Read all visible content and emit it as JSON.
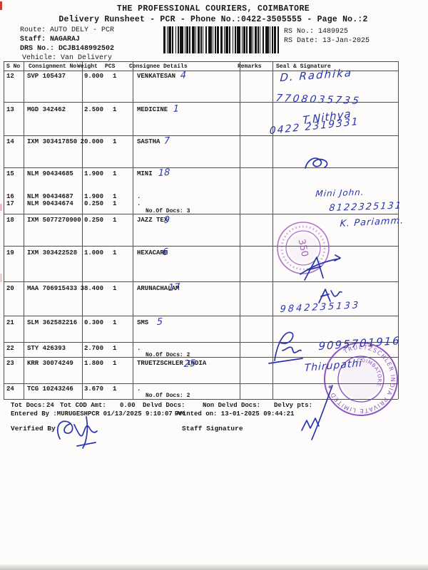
{
  "header": {
    "title": "THE PROFESSIONAL COURIERS, COIMBATORE",
    "subtitle": "Delivery Runsheet - PCR - Phone No.:0422-3505555 - Page No.:2",
    "route_label": "Route:",
    "route": "AUTO DELY - PCR",
    "staff_label": "Staff:",
    "staff": "NAGARAJ",
    "drs_label": "DRS No.:",
    "drs_no": "DCJB148992502",
    "vehicle_label": "Vehicle:",
    "vehicle": "Van Delivery",
    "rs_no_label": "RS No.:",
    "rs_no": "1489925",
    "rs_date_label": "RS Date:",
    "rs_date": "13-Jan-2025",
    "barcode_icon": "barcode"
  },
  "table": {
    "headers": [
      "S No",
      "Consignment No",
      "Weight",
      "PCS",
      "Consignee Details",
      "Remarks",
      "Seal & Signature"
    ],
    "rows": [
      {
        "sno": "12",
        "consignment": "SVP 105437",
        "weight": "9.000",
        "pcs": "1",
        "consignee": "VENKATESAN",
        "hw": "4"
      },
      {
        "sno": "13",
        "consignment": "MGD 342462",
        "weight": "2.500",
        "pcs": "1",
        "consignee": "MEDICINE",
        "hw": "1"
      },
      {
        "sno": "14",
        "consignment": "IXM 303417850",
        "weight": "20.000",
        "pcs": "1",
        "consignee": "SASTHA",
        "hw": "7"
      },
      {
        "sno": "15",
        "consignment": "NLM 90434685",
        "weight": "1.900",
        "pcs": "1",
        "consignee": "MINI",
        "hw": "18"
      },
      {
        "sno": "16",
        "consignment": "NLM 90434687",
        "weight": "1.900",
        "pcs": "1",
        "consignee": "."
      },
      {
        "sno": "17",
        "consignment": "NLM 90434674",
        "weight": "0.250",
        "pcs": "1",
        "consignee": ".",
        "docs_note": "No.Of Docs: 3"
      },
      {
        "sno": "18",
        "consignment": "IXM 5077270900",
        "weight": "0.250",
        "pcs": "1",
        "consignee": "JAZZ TEX",
        "hw": "9"
      },
      {
        "sno": "19",
        "consignment": "IXM 303422528",
        "weight": "1.000",
        "pcs": "1",
        "consignee": "HEXACARE",
        "hw": "6"
      },
      {
        "sno": "20",
        "consignment": "MAA 706915433",
        "weight": "38.400",
        "pcs": "1",
        "consignee": "ARUNACHALAM",
        "hw": "17"
      },
      {
        "sno": "21",
        "consignment": "SLM 362582216",
        "weight": "0.300",
        "pcs": "1",
        "consignee": "SMS",
        "hw": "5"
      },
      {
        "sno": "22",
        "consignment": "STY 426393",
        "weight": "2.700",
        "pcs": "1",
        "consignee": ".",
        "docs_note": "No.Of Docs: 2"
      },
      {
        "sno": "23",
        "consignment": "KRR 30074249",
        "weight": "1.800",
        "pcs": "1",
        "consignee": "TRUETZSCHLER INDIA",
        "hw": "25"
      },
      {
        "sno": "24",
        "consignment": "TCG 10243246",
        "weight": "3.670",
        "pcs": "1",
        "consignee": ".",
        "docs_note": "No.Of Docs: 2"
      }
    ]
  },
  "handwriting": {
    "seal_notes": [
      {
        "text": "D. Radhika"
      },
      {
        "text": "7708035735"
      },
      {
        "text": "T.Nithya"
      },
      {
        "text": "0422 2319331"
      },
      {
        "text": "Mini John."
      },
      {
        "text": "8122325131"
      },
      {
        "text": "K. Pariamm."
      },
      {
        "text": "9842235133"
      },
      {
        "text": "9095701916"
      },
      {
        "text": "Thirupathi"
      }
    ]
  },
  "stamps": {
    "small": {
      "center_text": "350"
    },
    "large": {
      "ring_text": "TRUETZSCHLER INDIA PRIVATE LIMITED ★",
      "center_text": "COIMBATORE"
    }
  },
  "footer": {
    "tot_docs_label": "Tot Docs:",
    "tot_docs": "24",
    "cod_label": "Tot COD Amt:",
    "cod_amt": "0.00",
    "delvd_label": "Delvd Docs:",
    "non_delvd_label": "Non Delvd Docs:",
    "delvy_label": "Delvy pts:",
    "entered_by": "Entered By :MURUGESHPCR 01/13/2025 9:10:07 AM",
    "printed_on": "Printed on: 13-01-2025 09:44:21",
    "verified_label": "Verified By",
    "staff_sig_label": "Staff Signature"
  },
  "colors": {
    "ink_blue": "#2834ad",
    "stamp_purple": "#7a3ab8",
    "grid_line": "#4e4e4e",
    "red_edge_mark": "#d03a2a"
  }
}
